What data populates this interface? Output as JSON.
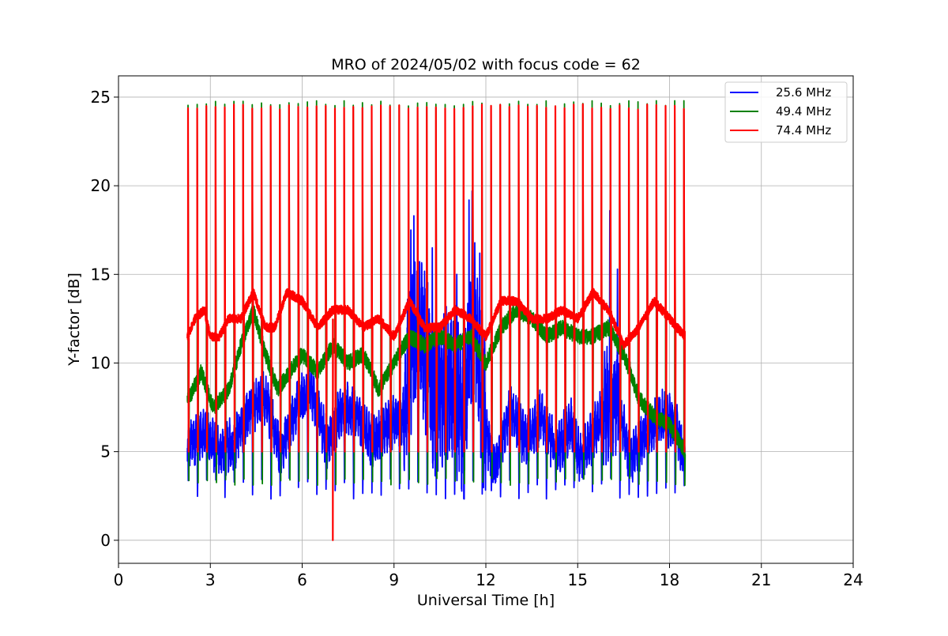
{
  "chart_data": {
    "type": "line",
    "title": "MRO of 2024/05/02 with focus code = 62",
    "xlabel": "Universal Time [h]",
    "ylabel": "Y-factor [dB]",
    "xlim": [
      0,
      24
    ],
    "ylim": [
      -1.3,
      26.2
    ],
    "xticks": [
      0,
      3,
      6,
      9,
      12,
      15,
      18,
      21,
      24
    ],
    "yticks": [
      0,
      5,
      10,
      15,
      20,
      25
    ],
    "grid": true,
    "legend_position": "top-right",
    "colors": {
      "blue": "#0000ff",
      "green": "#008000",
      "red": "#ff0000"
    },
    "x_range_data": [
      2.25,
      18.5
    ],
    "series": [
      {
        "name": "25.6 MHz",
        "color": "#0000ff",
        "base": {
          "x": [
            2.3,
            2.8,
            3.3,
            3.8,
            4.3,
            4.8,
            5.3,
            5.8,
            6.3,
            6.8,
            7.3,
            7.8,
            8.3,
            8.8,
            9.3,
            9.6,
            9.9,
            10.3,
            10.8,
            11.3,
            11.6,
            12.0,
            12.3,
            12.8,
            13.3,
            13.8,
            14.3,
            14.8,
            15.1,
            15.5,
            15.9,
            16.3,
            16.7,
            17.2,
            17.7,
            18.2,
            18.5
          ],
          "y": [
            5.5,
            6.0,
            5.0,
            5.5,
            7.5,
            8.0,
            5.0,
            7.5,
            8.5,
            5.5,
            7.5,
            7.0,
            5.5,
            6.5,
            7.0,
            11.0,
            12.0,
            8.0,
            9.0,
            7.0,
            13.0,
            6.0,
            4.0,
            7.5,
            5.5,
            7.0,
            5.0,
            6.5,
            4.5,
            6.0,
            7.5,
            8.0,
            4.5,
            6.0,
            7.0,
            6.5,
            4.5
          ]
        },
        "spike_max": [
          3.5,
          18.3,
          19.7,
          18.6,
          17.0
        ]
      },
      {
        "name": "49.4 MHz",
        "color": "#008000",
        "base": {
          "x": [
            2.3,
            2.7,
            3.1,
            3.6,
            4.0,
            4.4,
            4.8,
            5.2,
            5.6,
            6.0,
            6.5,
            7.0,
            7.5,
            8.0,
            8.5,
            9.0,
            9.5,
            10.0,
            10.5,
            11.0,
            11.5,
            12.0,
            12.5,
            13.0,
            13.5,
            14.0,
            14.5,
            15.0,
            15.5,
            16.0,
            16.5,
            17.0,
            17.5,
            18.0,
            18.5
          ],
          "y": [
            8.0,
            9.5,
            7.5,
            8.5,
            11.0,
            13.0,
            10.5,
            8.5,
            9.5,
            10.5,
            9.5,
            11.0,
            10.0,
            10.5,
            8.5,
            10.0,
            11.5,
            11.0,
            11.5,
            11.0,
            11.5,
            10.0,
            12.0,
            13.0,
            12.5,
            11.5,
            12.0,
            11.5,
            11.5,
            12.0,
            10.5,
            8.0,
            7.0,
            6.5,
            5.0
          ]
        },
        "spike_max": 24.8,
        "trough_min": 3.1
      },
      {
        "name": "74.4 MHz",
        "color": "#ff0000",
        "base": {
          "x": [
            2.25,
            2.5,
            2.8,
            3.0,
            3.3,
            3.6,
            4.0,
            4.4,
            4.8,
            5.1,
            5.5,
            6.0,
            6.5,
            7.0,
            7.5,
            8.0,
            8.5,
            9.0,
            9.5,
            10.0,
            10.5,
            11.0,
            11.5,
            12.0,
            12.5,
            13.0,
            13.5,
            14.0,
            14.5,
            15.0,
            15.5,
            16.0,
            16.5,
            17.0,
            17.5,
            18.0,
            18.5
          ],
          "y": [
            11.5,
            12.5,
            13.0,
            11.5,
            11.5,
            12.5,
            12.5,
            14.0,
            12.0,
            12.0,
            14.0,
            13.5,
            12.0,
            13.0,
            13.0,
            12.0,
            12.5,
            11.5,
            13.5,
            12.0,
            12.0,
            13.0,
            12.5,
            11.5,
            13.5,
            13.5,
            12.5,
            12.5,
            13.0,
            12.5,
            14.0,
            13.0,
            11.0,
            12.0,
            13.5,
            12.5,
            11.5
          ]
        },
        "spike_max": 24.6,
        "spike_min": 5.0,
        "dropout": {
          "x": 7.0,
          "y": 0.0
        }
      }
    ],
    "spike_period_h": 0.3,
    "spike_start_h": 2.27
  }
}
